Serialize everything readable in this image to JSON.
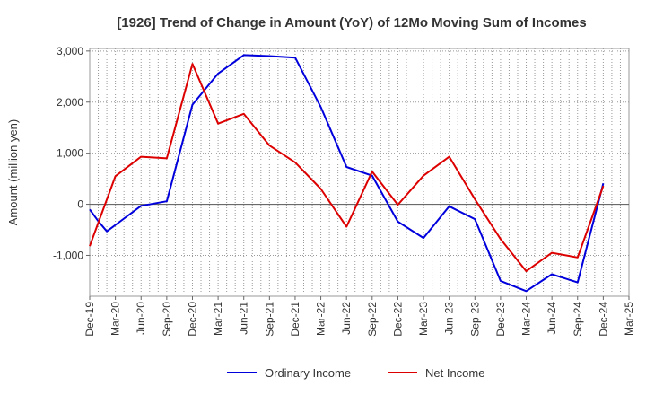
{
  "chart_data": {
    "type": "line",
    "title": "[1926]  Trend of Change in Amount (YoY) of 12Mo Moving Sum of Incomes",
    "xlabel": "",
    "ylabel": "Amount (million yen)",
    "ylim": [
      -1800,
      3050
    ],
    "yticks": [
      3000,
      2000,
      1000,
      0,
      -1000
    ],
    "ytick_labels": [
      "3,000",
      "2,000",
      "1,000",
      "0",
      "-1,000"
    ],
    "x": [
      "Dec-19",
      "Mar-20",
      "Jun-20",
      "Sep-20",
      "Dec-20",
      "Mar-21",
      "Jun-21",
      "Sep-21",
      "Dec-21",
      "Mar-22",
      "Jun-22",
      "Sep-22",
      "Dec-22",
      "Mar-23",
      "Jun-23",
      "Sep-23",
      "Dec-23",
      "Mar-24",
      "Jun-24",
      "Sep-24",
      "Dec-24",
      "Mar-25"
    ],
    "grid": true,
    "legend": "bottom",
    "series": [
      {
        "name": "Ordinary Income",
        "color": "#0000dd",
        "points": [
          [
            "Dec-19",
            -100
          ],
          [
            "Jan-20",
            -330
          ],
          [
            "Feb-20",
            -530
          ],
          [
            "Jun-20",
            -30
          ],
          [
            "Sep-20",
            60
          ],
          [
            "Dec-20",
            1950
          ],
          [
            "Mar-21",
            2560
          ],
          [
            "Jun-21",
            2920
          ],
          [
            "Sep-21",
            2900
          ],
          [
            "Dec-21",
            2870
          ],
          [
            "Mar-22",
            1900
          ],
          [
            "Jun-22",
            730
          ],
          [
            "Sep-22",
            560
          ],
          [
            "Dec-22",
            -340
          ],
          [
            "Mar-23",
            -660
          ],
          [
            "Jun-23",
            -40
          ],
          [
            "Sep-23",
            -290
          ],
          [
            "Dec-23",
            -1500
          ],
          [
            "Mar-24",
            -1700
          ],
          [
            "Jun-24",
            -1370
          ],
          [
            "Sep-24",
            -1530
          ],
          [
            "Dec-24",
            410
          ]
        ]
      },
      {
        "name": "Net Income",
        "color": "#dd0000",
        "points": [
          [
            "Dec-19",
            -820
          ],
          [
            "Mar-20",
            550
          ],
          [
            "Jun-20",
            930
          ],
          [
            "Sep-20",
            900
          ],
          [
            "Dec-20",
            2750
          ],
          [
            "Mar-21",
            1580
          ],
          [
            "Jun-21",
            1770
          ],
          [
            "Sep-21",
            1150
          ],
          [
            "Dec-21",
            820
          ],
          [
            "Mar-22",
            300
          ],
          [
            "Jun-22",
            -440
          ],
          [
            "Sep-22",
            640
          ],
          [
            "Dec-22",
            -10
          ],
          [
            "Mar-23",
            560
          ],
          [
            "Jun-23",
            930
          ],
          [
            "Sep-23",
            100
          ],
          [
            "Dec-23",
            -680
          ],
          [
            "Mar-24",
            -1310
          ],
          [
            "Jun-24",
            -950
          ],
          [
            "Sep-24",
            -1040
          ],
          [
            "Dec-24",
            360
          ]
        ]
      }
    ]
  }
}
